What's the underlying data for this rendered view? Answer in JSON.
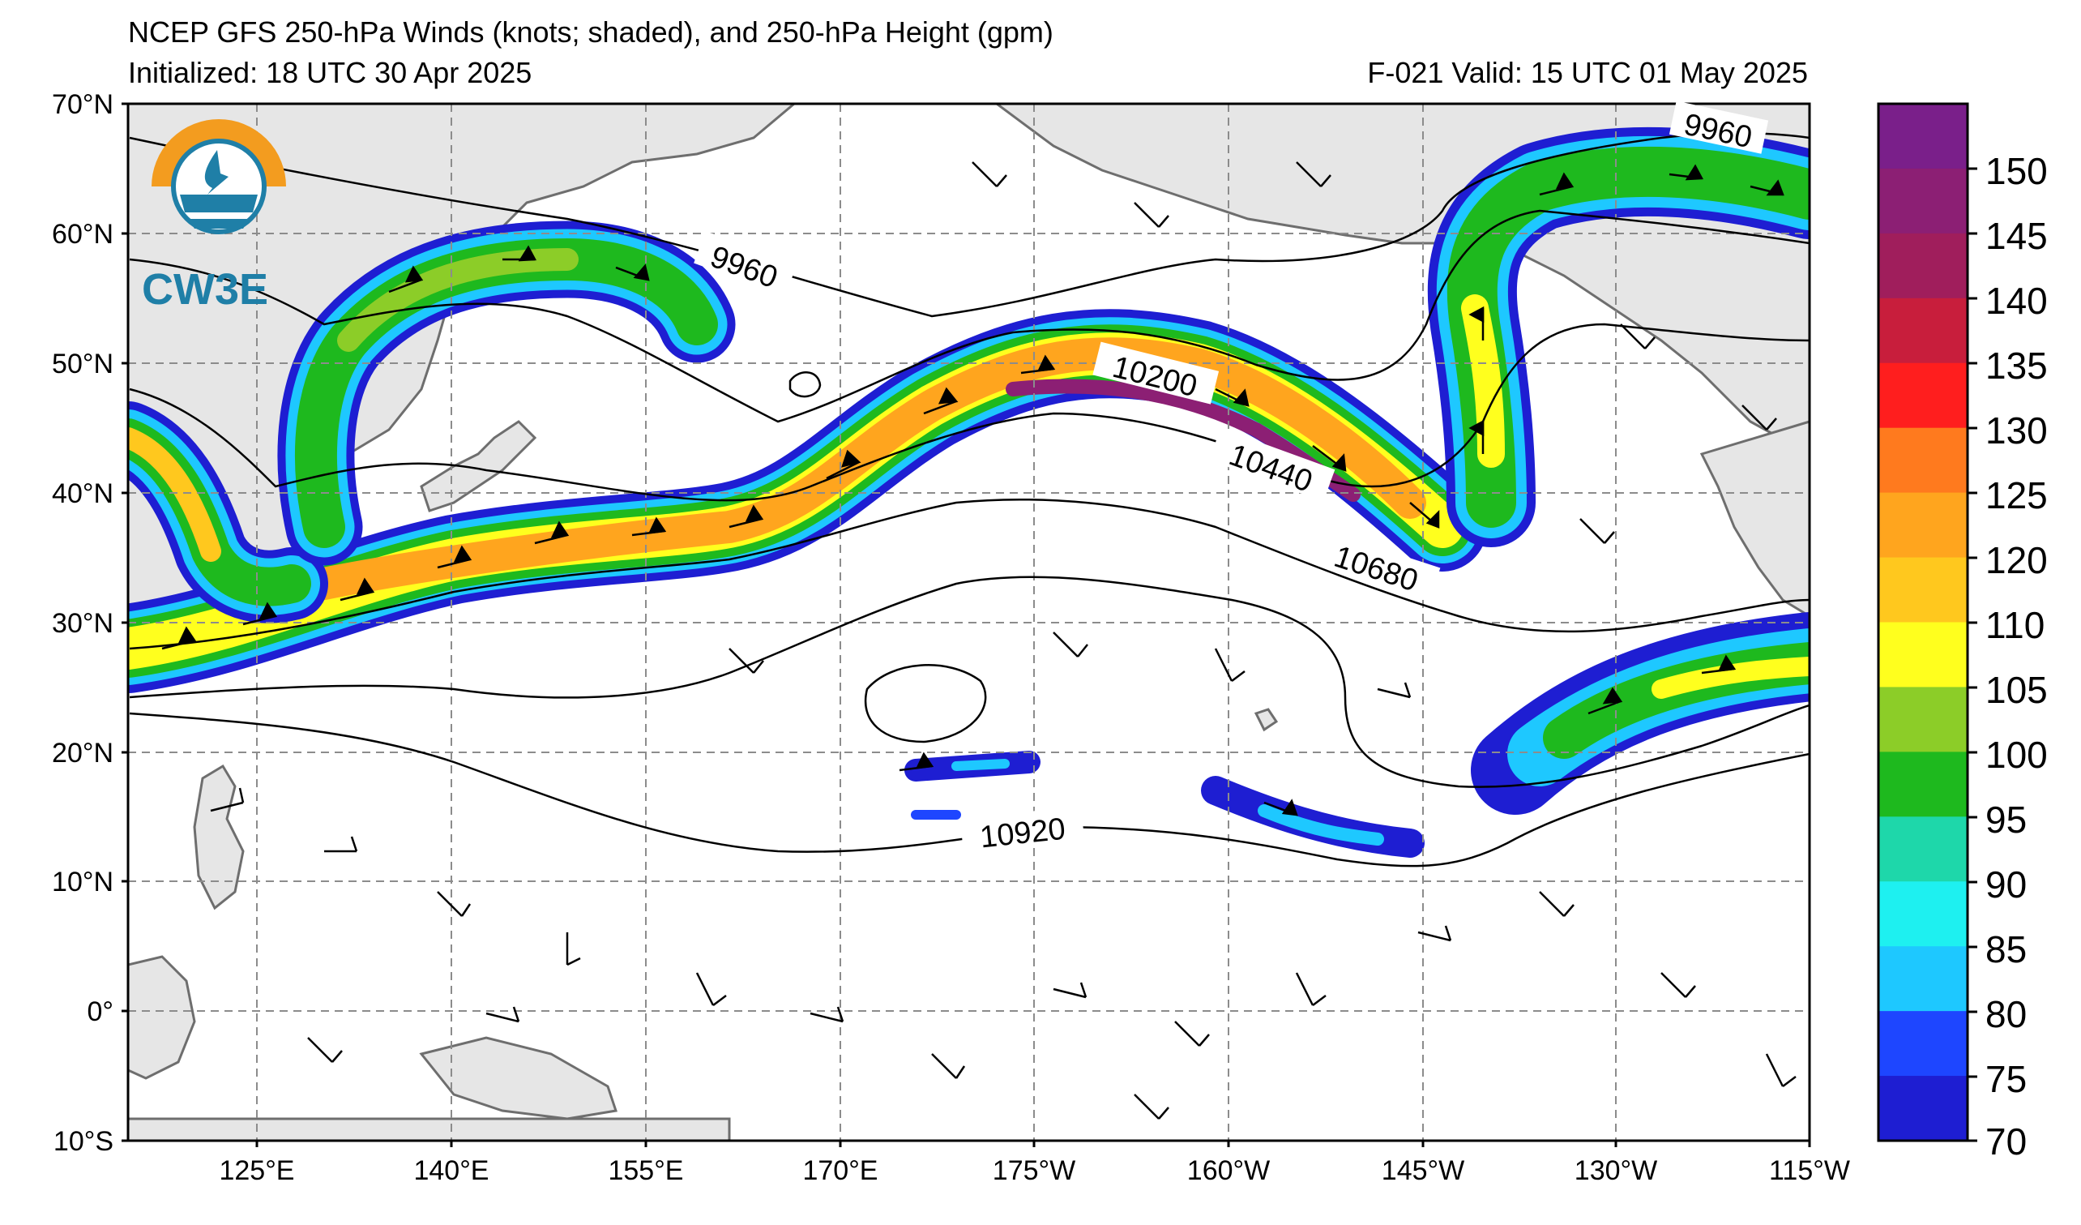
{
  "title": {
    "line1": "NCEP GFS 250-hPa Winds (knots; shaded), and 250-hPa Height (gpm)",
    "init": "Initialized: 18 UTC 30 Apr 2025",
    "valid": "F-021  Valid: 15 UTC 01 May 2025"
  },
  "logo": {
    "text": "CW3E",
    "colors": {
      "ring": "#f39c1f",
      "water": "#1f7fa7"
    }
  },
  "axes": {
    "lat_labels": [
      "70°N",
      "60°N",
      "50°N",
      "40°N",
      "30°N",
      "20°N",
      "10°N",
      "0°",
      "10°S"
    ],
    "lon_labels": [
      "125°E",
      "140°E",
      "155°E",
      "170°E",
      "175°W",
      "160°W",
      "145°W",
      "130°W",
      "115°W"
    ]
  },
  "contour_labels": [
    "9960",
    "9960",
    "10200",
    "10440",
    "10680",
    "10920"
  ],
  "colorbar": {
    "ticks": [
      "150",
      "145",
      "140",
      "135",
      "130",
      "125",
      "120",
      "110",
      "105",
      "100",
      "95",
      "90",
      "85",
      "80",
      "75",
      "70"
    ],
    "colors": [
      "#7a1f8a",
      "#8c1f74",
      "#a01e5c",
      "#c81e3c",
      "#ff1e1e",
      "#ff7a1e",
      "#ffa51e",
      "#ffc81e",
      "#ffff1e",
      "#8ccd28",
      "#1eb91e",
      "#1ed7aa",
      "#1ef0f0",
      "#1ec8ff",
      "#1e46ff",
      "#1e1ed2"
    ]
  },
  "map_colors": {
    "land": "#e6e6e6",
    "coast": "#6e6e6e",
    "grid": "#8c8c8c"
  }
}
